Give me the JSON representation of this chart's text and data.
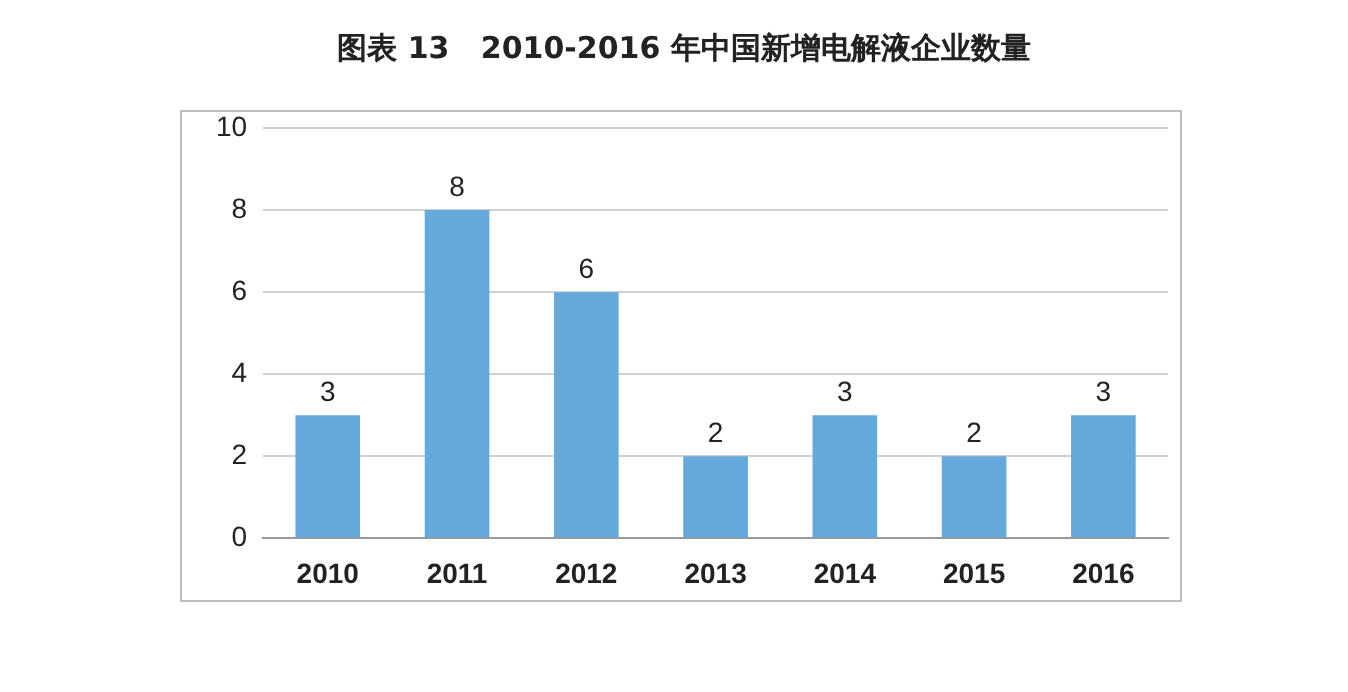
{
  "chart_data": {
    "type": "bar",
    "title": "图表 13   2010-2016 年中国新增电解液企业数量",
    "categories": [
      "2010",
      "2011",
      "2012",
      "2013",
      "2014",
      "2015",
      "2016"
    ],
    "values": [
      3,
      8,
      6,
      2,
      3,
      2,
      3
    ],
    "color": "#65a8dc",
    "ylim": [
      0,
      10
    ],
    "yticks": [
      0,
      2,
      4,
      6,
      8,
      10
    ],
    "grid": "y",
    "data_labels": true
  }
}
